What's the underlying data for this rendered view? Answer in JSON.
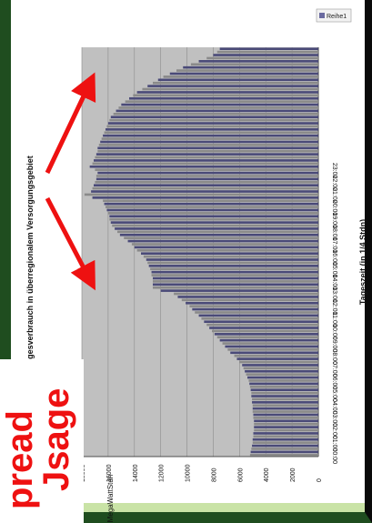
{
  "overlay": {
    "word_top": "pread",
    "word_bottom": "Jsage"
  },
  "colors": {
    "plot_bg": "#c0c0c0",
    "bar_a": "#8a8a8a",
    "bar_b": "#4a4a78",
    "arrow": "#ee1111"
  },
  "chart_data": {
    "type": "bar",
    "orientation": "vertical, rotated 90 degrees on page",
    "title": "Tagesverbrauch in überregionalem Versorgungsgebiet",
    "xlabel": "Tageszeit (in 1/4 Stdn)",
    "ylabel": "MegaWattStdn",
    "ylim": [
      0,
      18000
    ],
    "yticks": [
      "0",
      "2000",
      "4000",
      "6000",
      "8000",
      "10000",
      "12000",
      "14000",
      "16000",
      "18000"
    ],
    "xticks": [
      "00:00",
      "01:00",
      "02:00",
      "03:00",
      "04:00",
      "05:00",
      "06:00",
      "07:00",
      "08:00",
      "09:00",
      "10:00",
      "11:00",
      "12:00",
      "13:00",
      "14:00",
      "15:00",
      "16:00",
      "17:00",
      "18:00",
      "19:00",
      "20:00",
      "21:00",
      "22:00",
      "23:00"
    ],
    "grid": true,
    "legend": "top-right",
    "series": [
      {
        "name": "Reihe1",
        "values": [
          5200,
          5150,
          5100,
          5050,
          5000,
          5000,
          4950,
          4950,
          4900,
          4900,
          4900,
          4900,
          4950,
          4950,
          5000,
          5000,
          5000,
          5050,
          5050,
          5100,
          5100,
          5150,
          5200,
          5250,
          5300,
          5400,
          5500,
          5600,
          5700,
          5800,
          6000,
          6200,
          6400,
          6700,
          6900,
          7100,
          7300,
          7500,
          7700,
          7900,
          8100,
          8300,
          8500,
          8700,
          8900,
          9100,
          9400,
          9600,
          9800,
          10100,
          10400,
          10700,
          11000,
          12000,
          12600,
          12600,
          12600,
          12600,
          12700,
          12700,
          12800,
          12900,
          13000,
          13100,
          13300,
          13500,
          13800,
          14000,
          14200,
          14500,
          14800,
          15100,
          15300,
          15500,
          15700,
          15800,
          15900,
          15900,
          16000,
          16100,
          16200,
          16300,
          16400,
          17200,
          17800,
          17300,
          17200,
          17100,
          17000,
          16900,
          16900,
          16800,
          17000,
          17400,
          17200,
          17100,
          17000,
          16900,
          16800,
          16800,
          16700,
          16600,
          16500,
          16400,
          16300,
          16200,
          16100,
          16000,
          15900,
          15800,
          15600,
          15400,
          15200,
          15000,
          14700,
          14400,
          14100,
          13800,
          13400,
          13000,
          12600,
          12200,
          11800,
          11300,
          10800,
          10300,
          9700,
          9100,
          8500,
          8000,
          7700,
          7500
        ]
      }
    ]
  }
}
